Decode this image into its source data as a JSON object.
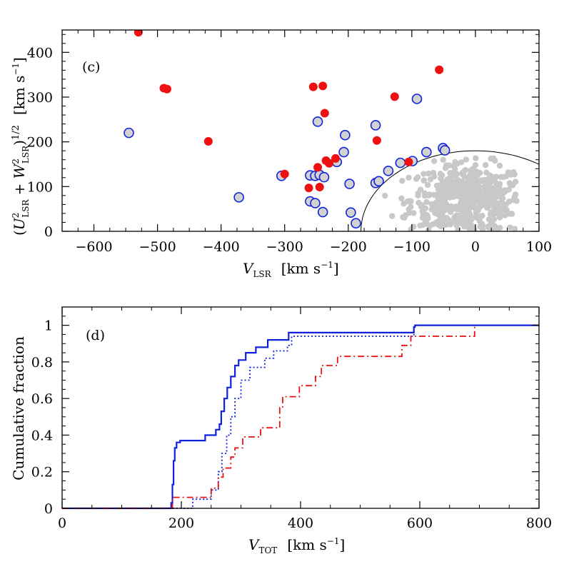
{
  "chart_data": [
    {
      "type": "scatter",
      "panel_label": "(c)",
      "xlabel": "V_LSR  [km s⁻¹]",
      "ylabel": "(U²_LSR + W²_LSR)^1/2  [km s⁻¹]",
      "xlim": [
        -650,
        100
      ],
      "ylim": [
        0,
        450
      ],
      "x_ticks": [
        -600,
        -500,
        -400,
        -300,
        -200,
        -100,
        0,
        100
      ],
      "y_ticks": [
        0,
        100,
        200,
        300,
        400
      ],
      "colors": {
        "red": "#ee1111",
        "blue": "#1122dd",
        "gray": "#c8c8c8"
      },
      "toomre_curve": {
        "center_x": 0,
        "radius": 180
      },
      "series": [
        {
          "marker": "filled-red-circle",
          "points": [
            [
              -530,
              445
            ],
            [
              -490,
              320
            ],
            [
              -485,
              318
            ],
            [
              -420,
              201
            ],
            [
              -300,
              128
            ],
            [
              -255,
              323
            ],
            [
              -240,
              325
            ],
            [
              -237,
              264
            ],
            [
              -235,
              158
            ],
            [
              -230,
              152
            ],
            [
              -220,
              163
            ],
            [
              -248,
              143
            ],
            [
              -245,
              99
            ],
            [
              -262,
              97
            ],
            [
              -155,
              203
            ],
            [
              -127,
              301
            ],
            [
              -57,
              361
            ],
            [
              -105,
              155
            ]
          ]
        },
        {
          "marker": "open-blue-circle",
          "points": [
            [
              -545,
              220
            ],
            [
              -372,
              76
            ],
            [
              -305,
              124
            ],
            [
              -260,
              125
            ],
            [
              -252,
              124
            ],
            [
              -245,
              126
            ],
            [
              -238,
              121
            ],
            [
              -260,
              67
            ],
            [
              -252,
              63
            ],
            [
              -240,
              43
            ],
            [
              -248,
              245
            ],
            [
              -205,
              215
            ],
            [
              -207,
              177
            ],
            [
              -218,
              155
            ],
            [
              -198,
              106
            ],
            [
              -196,
              42
            ],
            [
              -188,
              18
            ],
            [
              -157,
              237
            ],
            [
              -157,
              108
            ],
            [
              -152,
              112
            ],
            [
              -137,
              135
            ],
            [
              -118,
              153
            ],
            [
              -99,
              157
            ],
            [
              -92,
              296
            ],
            [
              -77,
              177
            ],
            [
              -51,
              186
            ],
            [
              -48,
              181
            ]
          ]
        },
        {
          "marker": "gray-dot",
          "count": 520,
          "center": [
            -12,
            70
          ],
          "spread": [
            45,
            40
          ],
          "within_radius": 180
        }
      ]
    },
    {
      "type": "line",
      "panel_label": "(d)",
      "xlabel": "V_TOT  [km s⁻¹]",
      "ylabel": "Cumulative fraction",
      "xlim": [
        0,
        800
      ],
      "ylim": [
        0,
        1.1
      ],
      "x_ticks": [
        0,
        200,
        400,
        600,
        800
      ],
      "y_ticks": [
        0,
        0.2,
        0.4,
        0.6,
        0.8,
        1
      ],
      "y_tick_labels": [
        "0",
        "0.2",
        "0.4",
        "0.6",
        "0.8",
        "1"
      ],
      "series": [
        {
          "style": "solid",
          "color": "#1122dd",
          "steps": [
            [
              0,
              0
            ],
            [
              183,
              0
            ],
            [
              183,
              0.03
            ],
            [
              185,
              0.13
            ],
            [
              187,
              0.26
            ],
            [
              189,
              0.33
            ],
            [
              192,
              0.36
            ],
            [
              198,
              0.37
            ],
            [
              240,
              0.4
            ],
            [
              258,
              0.43
            ],
            [
              264,
              0.46
            ],
            [
              267,
              0.53
            ],
            [
              272,
              0.6
            ],
            [
              277,
              0.66
            ],
            [
              283,
              0.72
            ],
            [
              290,
              0.78
            ],
            [
              296,
              0.81
            ],
            [
              308,
              0.85
            ],
            [
              325,
              0.88
            ],
            [
              345,
              0.92
            ],
            [
              380,
              0.96
            ],
            [
              590,
              0.99
            ],
            [
              592,
              1.0
            ],
            [
              800,
              1.0
            ]
          ]
        },
        {
          "style": "dotted",
          "color": "#1122dd",
          "steps": [
            [
              0,
              0
            ],
            [
              219,
              0
            ],
            [
              219,
              0.05
            ],
            [
              250,
              0.1
            ],
            [
              262,
              0.2
            ],
            [
              268,
              0.3
            ],
            [
              276,
              0.4
            ],
            [
              283,
              0.5
            ],
            [
              290,
              0.6
            ],
            [
              300,
              0.7
            ],
            [
              315,
              0.77
            ],
            [
              340,
              0.82
            ],
            [
              355,
              0.86
            ],
            [
              378,
              0.89
            ],
            [
              385,
              0.94
            ],
            [
              590,
              0.99
            ],
            [
              592,
              1.0
            ],
            [
              800,
              1.0
            ]
          ]
        },
        {
          "style": "dash-dot",
          "color": "#ee1111",
          "steps": [
            [
              0,
              0
            ],
            [
              180,
              0
            ],
            [
              185,
              0.06
            ],
            [
              250,
              0.11
            ],
            [
              262,
              0.17
            ],
            [
              270,
              0.22
            ],
            [
              283,
              0.28
            ],
            [
              290,
              0.33
            ],
            [
              303,
              0.39
            ],
            [
              333,
              0.44
            ],
            [
              365,
              0.55
            ],
            [
              370,
              0.61
            ],
            [
              398,
              0.67
            ],
            [
              425,
              0.72
            ],
            [
              435,
              0.78
            ],
            [
              462,
              0.83
            ],
            [
              570,
              0.89
            ],
            [
              585,
              0.94
            ],
            [
              692,
              1.0
            ]
          ]
        }
      ]
    }
  ]
}
